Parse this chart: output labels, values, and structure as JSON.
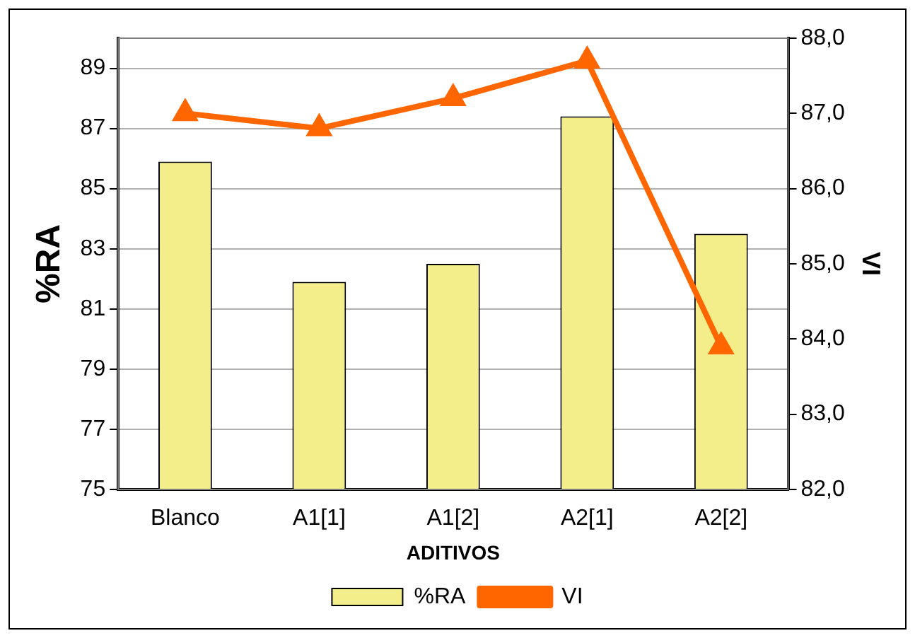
{
  "chart_data": {
    "type": "bar",
    "xlabel": "ADITIVOS",
    "ylabel": "%RA",
    "y2label": "VI",
    "categories": [
      "Blanco",
      "A1[1]",
      "A1[2]",
      "A2[1]",
      "A2[2]"
    ],
    "series": [
      {
        "name": "%RA",
        "color": "#f3ee8a",
        "values": [
          85.9,
          81.9,
          82.5,
          87.4,
          83.5
        ]
      },
      {
        "name": "VI",
        "type": "line",
        "axis": "y2",
        "color": "#ff6600",
        "marker": "triangle",
        "values": [
          87.0,
          86.8,
          87.2,
          87.7,
          83.9
        ]
      }
    ],
    "ylim": [
      75,
      90
    ],
    "yticks": [
      75,
      77,
      79,
      81,
      83,
      85,
      87,
      89
    ],
    "y2lim": [
      82,
      88
    ],
    "y2ticks": [
      {
        "value": 82,
        "label": "82,0"
      },
      {
        "value": 83,
        "label": "83,0"
      },
      {
        "value": 84,
        "label": "84,0"
      },
      {
        "value": 85,
        "label": "85,0"
      },
      {
        "value": 86,
        "label": "86,0"
      },
      {
        "value": 87,
        "label": "87,0"
      },
      {
        "value": 88,
        "label": "88,0"
      }
    ],
    "grid": "y",
    "legend": "bottom"
  }
}
